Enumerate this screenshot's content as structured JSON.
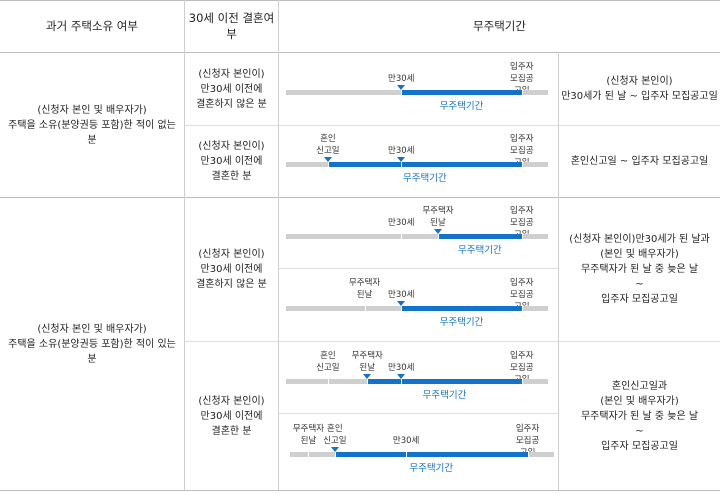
{
  "header": {
    "col1": "과거 주택소유 여부",
    "col2": "30세 이전 결혼여부",
    "col3": "무주택기간"
  },
  "rows": [
    {
      "ownership": "(신청자 본인 및 배우자가)\n주택을 소유(분양권등 포함)한 적이 없는 분",
      "cases": [
        {
          "marriage": "(신청자 본인이)\n만30세 이전에\n결혼하지 않은 분",
          "result": "(신청자 본인이)\n만30세가 된 날 ~ 입주자 모집공고일"
        },
        {
          "marriage": "(신청자 본인이)\n만30세 이전에\n결혼한 분",
          "result": "혼인신고일 ~ 입주자 모집공고일"
        }
      ]
    },
    {
      "ownership": "(신청자 본인 및 배우자가)\n주택을 소유(분양권등 포함)한 적이 있는 분",
      "cases": [
        {
          "marriage": "(신청자 본인이)\n만30세 이전에\n결혼하지 않은 분",
          "result": "(신청자 본인이)만30세가 된 날과\n(본인 및 배우자가)\n무주택자가 된 날 중 늦은 날\n~\n입주자 모집공고일"
        },
        {
          "marriage": "(신청자 본인이)\n만30세 이전에\n결혼한 분",
          "result": "혼인신고일과\n(본인 및 배우자가)\n무주택자가 된 날 중 늦은 날\n~\n입주자 모집공고일"
        }
      ]
    }
  ],
  "labels": {
    "age30": "만30세",
    "notice": "입주자\n모집공고일",
    "marriage": "혼인\n신고일",
    "homeless": "무주택자\n된날",
    "period": "무주택기간"
  },
  "diagrams": [
    {
      "markers": [
        {
          "key": "age30",
          "at": 0.44,
          "tri": true
        },
        {
          "key": "notice",
          "at": 0.9
        }
      ],
      "seg": [
        0.44,
        0.9
      ]
    },
    {
      "markers": [
        {
          "key": "marriage",
          "at": 0.16,
          "tri": true
        },
        {
          "key": "age30",
          "at": 0.44,
          "tri": true
        },
        {
          "key": "notice",
          "at": 0.9
        }
      ],
      "seg": [
        0.16,
        0.9
      ]
    },
    {
      "markers": [
        {
          "key": "age30",
          "at": 0.44
        },
        {
          "key": "homeless",
          "at": 0.58,
          "tri": true
        },
        {
          "key": "notice",
          "at": 0.9
        }
      ],
      "seg": [
        0.58,
        0.9
      ]
    },
    {
      "markers": [
        {
          "key": "homeless",
          "at": 0.3
        },
        {
          "key": "age30",
          "at": 0.44,
          "tri": true
        },
        {
          "key": "notice",
          "at": 0.9
        }
      ],
      "seg": [
        0.44,
        0.9
      ]
    },
    {
      "markers": [
        {
          "key": "marriage",
          "at": 0.16
        },
        {
          "key": "homeless",
          "at": 0.31,
          "tri": true
        },
        {
          "key": "age30",
          "at": 0.44,
          "tri": true
        },
        {
          "key": "notice",
          "at": 0.9
        }
      ],
      "seg": [
        0.31,
        0.9
      ]
    },
    {
      "markers": [
        {
          "key": "homeless",
          "at": 0.07
        },
        {
          "key": "marriage",
          "at": 0.17,
          "tri": true
        },
        {
          "key": "age30",
          "at": 0.44
        },
        {
          "key": "notice",
          "at": 0.9
        }
      ],
      "seg": [
        0.17,
        0.9
      ]
    }
  ]
}
